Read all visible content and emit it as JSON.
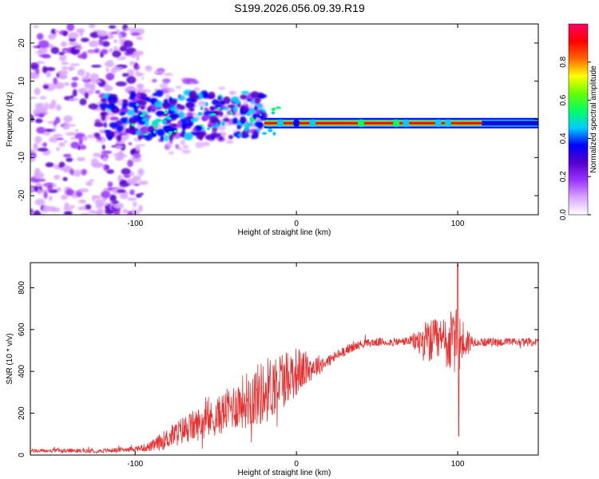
{
  "title": "S199.2026.056.09.39.R19",
  "chart_data": [
    {
      "type": "heatmap",
      "xlabel": "Height of straight line (km)",
      "ylabel": "Frequency (Hz)",
      "xlim": [
        -165,
        150
      ],
      "ylim": [
        -25,
        25
      ],
      "xticks": [
        {
          "value": -100,
          "label": "-100"
        },
        {
          "value": 0,
          "label": "0"
        },
        {
          "value": 100,
          "label": "100"
        }
      ],
      "yticks": [
        {
          "value": -20,
          "label": "-20"
        },
        {
          "value": -10,
          "label": "-10"
        },
        {
          "value": 0,
          "label": "0"
        },
        {
          "value": 10,
          "label": "10"
        },
        {
          "value": 20,
          "label": "20"
        }
      ],
      "colorbar": {
        "label": "Normalized spectral amplitude",
        "range": [
          0,
          1
        ],
        "ticks": [
          {
            "value": 0.0,
            "label": "0.0"
          },
          {
            "value": 0.2,
            "label": "0.2"
          },
          {
            "value": 0.4,
            "label": "0.4"
          },
          {
            "value": 0.6,
            "label": "0.6"
          },
          {
            "value": 0.8,
            "label": "0.8"
          }
        ],
        "colors": [
          "#ffffff",
          "#d9a6ff",
          "#9933ff",
          "#5500cc",
          "#0000ff",
          "#00ccff",
          "#00ff66",
          "#66ff00",
          "#ffff00",
          "#ff6600",
          "#ff0000",
          "#ff0066"
        ]
      },
      "ridge": {
        "x_start": -20,
        "x_end": 150,
        "frequency": -1
      }
    },
    {
      "type": "line",
      "xlabel": "Height of straight line (km)",
      "ylabel": "SNR (10 * v/v)",
      "xlim": [
        -165,
        150
      ],
      "ylim": [
        0,
        920
      ],
      "xticks": [
        {
          "value": -100,
          "label": "-100"
        },
        {
          "value": 0,
          "label": "0"
        },
        {
          "value": 100,
          "label": "100"
        }
      ],
      "yticks": [
        {
          "value": 0,
          "label": "0"
        },
        {
          "value": 200,
          "label": "200"
        },
        {
          "value": 400,
          "label": "400"
        },
        {
          "value": 600,
          "label": "600"
        },
        {
          "value": 800,
          "label": "800"
        }
      ],
      "color": "#e83030",
      "series": [
        {
          "name": "SNR",
          "x": [
            -165,
            -140,
            -120,
            -100,
            -90,
            -85,
            -80,
            -70,
            -60,
            -50,
            -40,
            -30,
            -20,
            -10,
            0,
            10,
            20,
            30,
            40,
            50,
            60,
            70,
            80,
            90,
            95,
            100,
            110,
            120,
            130,
            140,
            150
          ],
          "y": [
            20,
            20,
            20,
            30,
            40,
            60,
            80,
            120,
            150,
            180,
            230,
            270,
            300,
            360,
            400,
            420,
            450,
            500,
            530,
            540,
            540,
            545,
            540,
            540,
            540,
            540,
            540,
            540,
            540,
            540,
            540
          ],
          "noise": [
            10,
            10,
            10,
            12,
            25,
            40,
            50,
            70,
            80,
            90,
            110,
            140,
            160,
            150,
            120,
            60,
            30,
            25,
            20,
            20,
            20,
            20,
            100,
            120,
            150,
            160,
            20,
            20,
            20,
            20,
            20
          ]
        }
      ]
    }
  ]
}
